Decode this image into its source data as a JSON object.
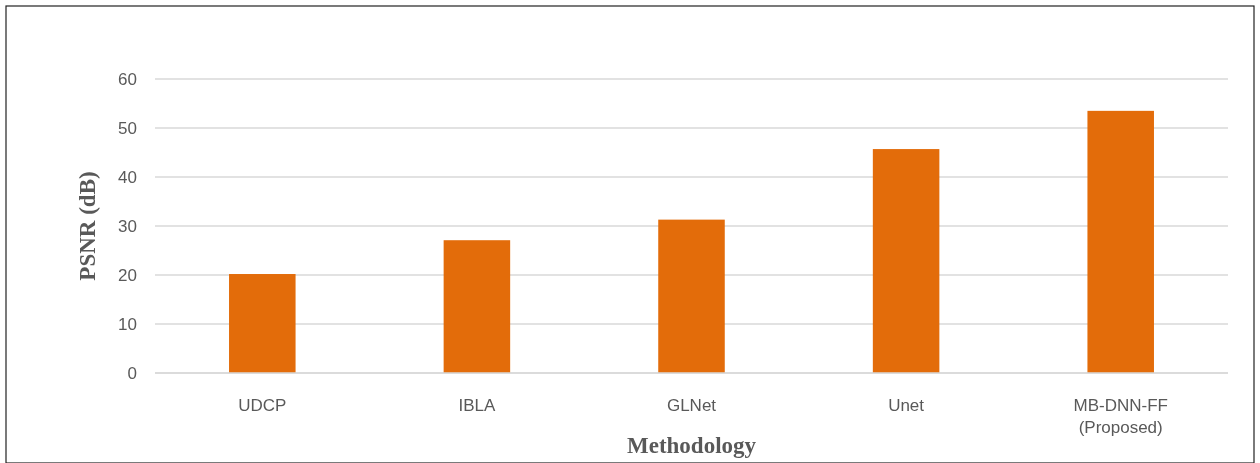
{
  "chart_data": {
    "type": "bar",
    "xlabel": "Methodology",
    "ylabel": "PSNR (dB)",
    "categories": [
      "UDCP",
      "IBLA",
      "GLNet",
      "Unet",
      "MB-DNN-FF (Proposed)"
    ],
    "values": [
      20.2,
      27.1,
      31.3,
      45.7,
      53.5
    ],
    "color": "#e36c0a",
    "ylim": [
      0,
      60
    ],
    "yticks": [
      0,
      10,
      20,
      30,
      40,
      50,
      60
    ],
    "grid": "y"
  }
}
